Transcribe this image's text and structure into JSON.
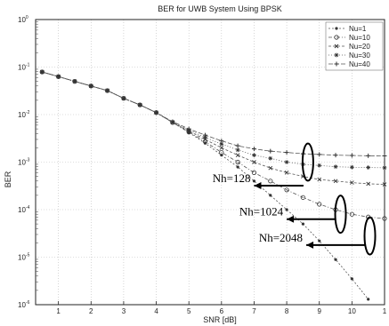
{
  "chart_data": {
    "type": "line",
    "title": "BER for UWB System Using BPSK",
    "xlabel": "SNR [dB]",
    "ylabel": "BER",
    "xlim": [
      0.3,
      11
    ],
    "ylim": [
      -6,
      0
    ],
    "yscale": "log",
    "x_ticks": [
      "1",
      "2",
      "3",
      "4",
      "5",
      "6",
      "7",
      "8",
      "9",
      "10",
      "1"
    ],
    "y_ticks": [
      {
        "base": "10",
        "exp": "0"
      },
      {
        "base": "10",
        "exp": "-1"
      },
      {
        "base": "10",
        "exp": "-2"
      },
      {
        "base": "10",
        "exp": "-3"
      },
      {
        "base": "10",
        "exp": "-4"
      },
      {
        "base": "10",
        "exp": "-5"
      },
      {
        "base": "10",
        "exp": "-6"
      }
    ],
    "grid": true,
    "legend_position": "top-right",
    "x": [
      0.5,
      1,
      1.5,
      2,
      2.5,
      3,
      3.5,
      4,
      4.5,
      5,
      5.5,
      6,
      6.5,
      7,
      7.5,
      8,
      8.5,
      9,
      9.5,
      10,
      10.5,
      11
    ],
    "series": [
      {
        "name": "Nu=1",
        "values": [
          0.079,
          0.063,
          0.05,
          0.04,
          0.032,
          0.022,
          0.016,
          0.011,
          0.0068,
          0.0042,
          0.0025,
          0.0014,
          0.00079,
          0.0004,
          0.0002,
          0.0001,
          5e-05,
          2.2e-05,
          8.9e-06,
          3.5e-06,
          1.3e-06,
          5e-07
        ]
      },
      {
        "name": "Nu=10",
        "values": [
          0.079,
          0.063,
          0.05,
          0.04,
          0.032,
          0.022,
          0.016,
          0.011,
          0.0068,
          0.0043,
          0.0027,
          0.0016,
          0.001,
          0.0006,
          0.0004,
          0.00026,
          0.00018,
          0.00013,
          0.0001,
          8e-05,
          7e-05,
          6.5e-05
        ]
      },
      {
        "name": "Nu=20",
        "values": [
          0.079,
          0.063,
          0.05,
          0.04,
          0.032,
          0.022,
          0.016,
          0.011,
          0.0069,
          0.0045,
          0.003,
          0.002,
          0.0014,
          0.001,
          0.00075,
          0.0006,
          0.0005,
          0.00043,
          0.0004,
          0.00037,
          0.00035,
          0.00034
        ]
      },
      {
        "name": "Nu=30",
        "values": [
          0.079,
          0.063,
          0.05,
          0.04,
          0.032,
          0.022,
          0.016,
          0.011,
          0.007,
          0.0047,
          0.0033,
          0.0024,
          0.0018,
          0.0014,
          0.0012,
          0.001,
          0.0009,
          0.00085,
          0.0008,
          0.00078,
          0.00077,
          0.00076
        ]
      },
      {
        "name": "Nu=40",
        "values": [
          0.079,
          0.063,
          0.05,
          0.04,
          0.032,
          0.022,
          0.016,
          0.011,
          0.0071,
          0.005,
          0.0037,
          0.0028,
          0.0022,
          0.0019,
          0.0017,
          0.0016,
          0.0015,
          0.00145,
          0.0014,
          0.00138,
          0.00136,
          0.00135
        ]
      }
    ],
    "annotations": [
      {
        "text": "Nh=128",
        "ellipse_center": [
          8.65,
          0.001
        ],
        "arrow_to": [
          7.0,
          0.00032
        ]
      },
      {
        "text": "Nh=1024",
        "ellipse_center": [
          9.65,
          8e-05
        ],
        "arrow_to": [
          8.0,
          6.3e-05
        ]
      },
      {
        "text": "Nh=2048",
        "ellipse_center": [
          10.55,
          2.8e-05
        ],
        "arrow_to": [
          8.6,
          1.8e-05
        ]
      }
    ],
    "colors": {
      "line": "#555555",
      "marker": "#333333",
      "annotation": "#000000",
      "grid": "#bbbbbb"
    }
  }
}
